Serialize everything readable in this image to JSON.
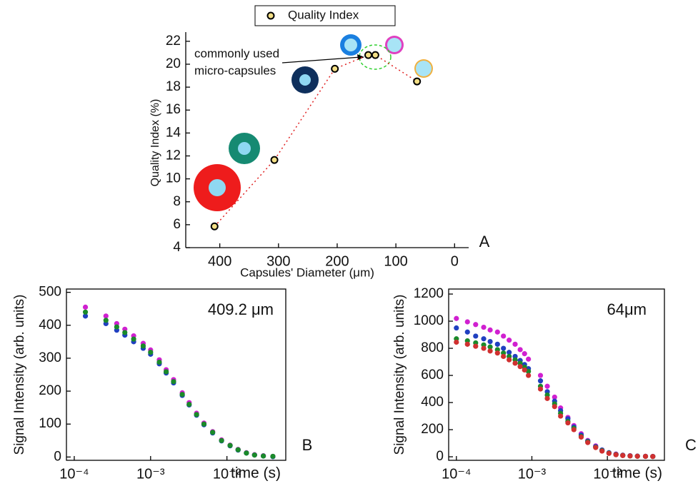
{
  "chart_data": [
    {
      "type": "scatter",
      "x_label": "Capsules' Diameter (μm)",
      "y_label": "Quality Index (%)",
      "panel_label": "A",
      "annotation": [
        "commonly used",
        "micro-capsules"
      ],
      "x": [
        409,
        307,
        204,
        147,
        135,
        64
      ],
      "series": [
        {
          "name": "Quality Index",
          "color": "#f3df86",
          "values": [
            5.85,
            11.65,
            19.6,
            20.8,
            20.8,
            18.5
          ]
        }
      ],
      "line_color": "#e02020",
      "line_style": "dotted",
      "legend": "top",
      "xlim": [
        458,
        -24
      ],
      "xticks": [
        400,
        300,
        200,
        100,
        0
      ],
      "ylim": [
        4,
        22.8
      ],
      "yticks": [
        4,
        6,
        8,
        10,
        12,
        14,
        16,
        18,
        20,
        22
      ]
    },
    {
      "type": "scatter",
      "x_label": "time (s)",
      "y_label": "Signal Intensity (arb. units)",
      "panel_label": "B",
      "annotation": [
        "409.2 μm"
      ],
      "xscale": "log",
      "x": [
        0.00014,
        0.00026,
        0.00036,
        0.00046,
        0.0006,
        0.0008,
        0.001,
        0.0013,
        0.0016,
        0.002,
        0.0026,
        0.0032,
        0.004,
        0.005,
        0.0065,
        0.0085,
        0.011,
        0.014,
        0.018,
        0.023,
        0.03,
        0.04
      ],
      "series": [
        {
          "color": "#d020d0",
          "values": [
            455,
            428,
            405,
            388,
            368,
            345,
            325,
            295,
            265,
            235,
            195,
            165,
            133,
            103,
            77,
            52,
            36,
            23,
            13,
            7,
            4,
            2
          ]
        },
        {
          "color": "#2040c0",
          "values": [
            428,
            405,
            385,
            370,
            350,
            330,
            312,
            283,
            255,
            225,
            187,
            158,
            127,
            98,
            73,
            49,
            34,
            21,
            12,
            6,
            3,
            1
          ]
        },
        {
          "color": "#1a8a2a",
          "values": [
            440,
            415,
            395,
            378,
            358,
            337,
            318,
            288,
            259,
            229,
            190,
            160,
            129,
            100,
            75,
            50,
            35,
            22,
            12,
            6,
            3,
            2
          ]
        }
      ],
      "xlim": [
        7.9e-05,
        0.059
      ],
      "xticks": [
        {
          "value": 0.0001,
          "label": "10⁻⁴"
        },
        {
          "value": 0.001,
          "label": "10⁻³"
        },
        {
          "value": 0.01,
          "label": "10⁻²"
        }
      ],
      "ylim": [
        -10,
        510
      ],
      "yticks": [
        0,
        100,
        200,
        300,
        400,
        500
      ]
    },
    {
      "type": "scatter",
      "x_label": "time (s)",
      "y_label": "Signal Intensity (arb. units)",
      "panel_label": "C",
      "annotation": [
        "64μm"
      ],
      "xscale": "log",
      "x": [
        0.0001,
        0.00014,
        0.00018,
        0.00023,
        0.00028,
        0.00035,
        0.00042,
        0.0005,
        0.0006,
        0.0007,
        0.0008,
        0.0009,
        0.0013,
        0.0016,
        0.002,
        0.0024,
        0.003,
        0.0036,
        0.0045,
        0.0055,
        0.007,
        0.0085,
        0.0105,
        0.013,
        0.016,
        0.02,
        0.025,
        0.032,
        0.04
      ],
      "series": [
        {
          "color": "#d020d0",
          "values": [
            1020,
            995,
            975,
            955,
            935,
            920,
            890,
            860,
            830,
            790,
            760,
            720,
            600,
            520,
            440,
            360,
            290,
            230,
            170,
            120,
            80,
            50,
            30,
            20,
            12,
            8,
            5,
            4,
            3
          ]
        },
        {
          "color": "#2040c0",
          "values": [
            950,
            920,
            890,
            870,
            850,
            830,
            800,
            770,
            740,
            710,
            680,
            650,
            560,
            480,
            410,
            340,
            280,
            220,
            160,
            115,
            75,
            50,
            30,
            18,
            11,
            7,
            5,
            3,
            2
          ]
        },
        {
          "color": "#1a8a2a",
          "values": [
            870,
            855,
            840,
            825,
            810,
            790,
            765,
            740,
            715,
            690,
            660,
            630,
            520,
            455,
            390,
            320,
            260,
            210,
            150,
            110,
            70,
            45,
            27,
            16,
            10,
            6,
            4,
            3,
            2
          ]
        },
        {
          "color": "#d03030",
          "values": [
            845,
            830,
            815,
            800,
            780,
            765,
            740,
            715,
            690,
            665,
            640,
            600,
            500,
            430,
            370,
            300,
            250,
            200,
            145,
            105,
            68,
            42,
            25,
            15,
            9,
            6,
            4,
            3,
            2
          ]
        }
      ],
      "xlim": [
        7.9e-05,
        0.057
      ],
      "xticks": [
        {
          "value": 0.0001,
          "label": "10⁻⁴"
        },
        {
          "value": 0.001,
          "label": "10⁻³"
        },
        {
          "value": 0.01,
          "label": "10⁻²"
        }
      ],
      "ylim": [
        -26,
        1237
      ],
      "yticks": [
        0,
        200,
        400,
        600,
        800,
        1000,
        1200
      ]
    }
  ]
}
